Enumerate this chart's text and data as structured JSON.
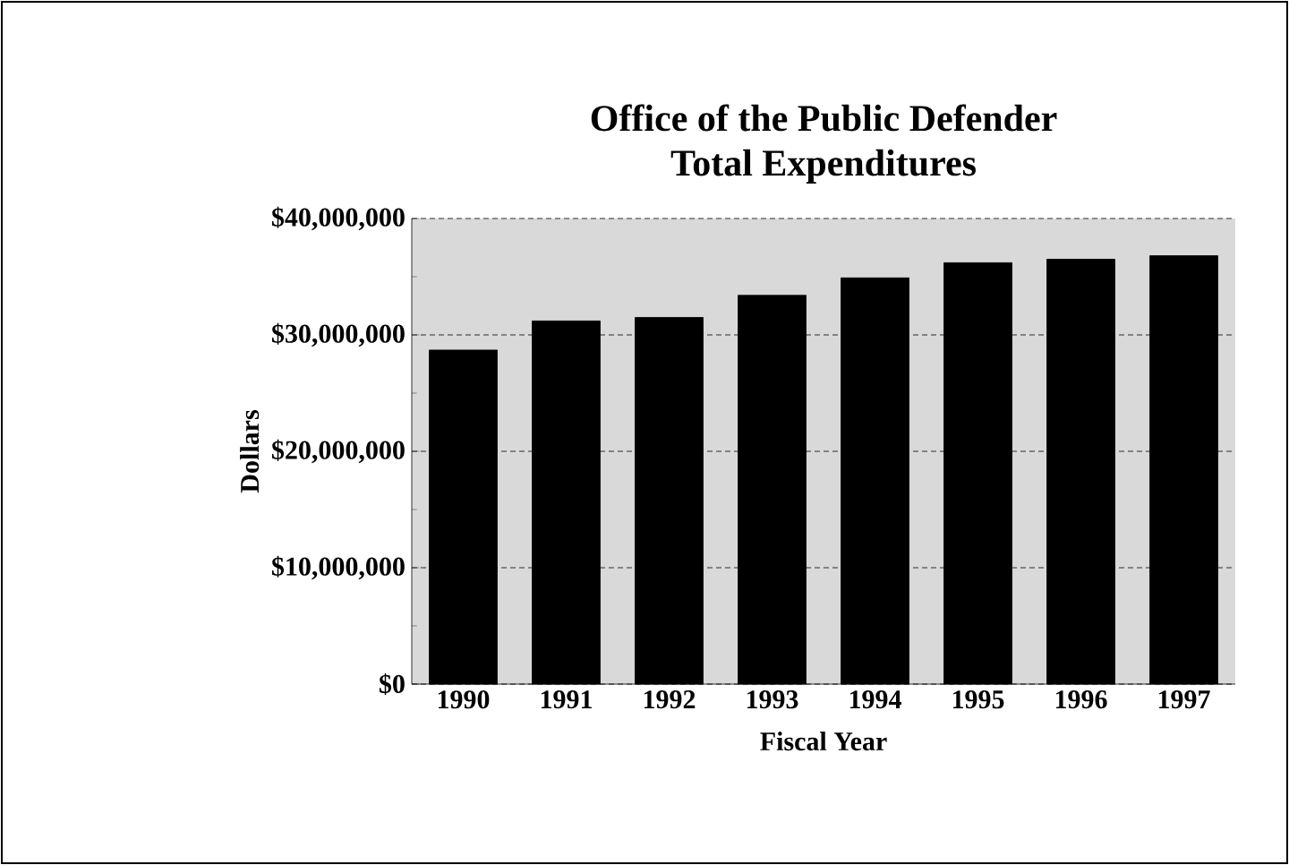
{
  "chart_data": {
    "type": "bar",
    "title": "Office of the Public Defender\nTotal Expenditures",
    "xlabel": "Fiscal Year",
    "ylabel": "Dollars",
    "categories": [
      "1990",
      "1991",
      "1992",
      "1993",
      "1994",
      "1995",
      "1996",
      "1997"
    ],
    "values": [
      28700000,
      31200000,
      31500000,
      33400000,
      34900000,
      36200000,
      36500000,
      36800000
    ],
    "color": "#000000",
    "ylim": [
      0,
      40000000
    ],
    "yticks": [
      {
        "value": 0,
        "label": "$0"
      },
      {
        "value": 10000000,
        "label": "$10,000,000"
      },
      {
        "value": 20000000,
        "label": "$20,000,000"
      },
      {
        "value": 30000000,
        "label": "$30,000,000"
      },
      {
        "value": 40000000,
        "label": "$40,000,000"
      }
    ],
    "grid": "y"
  }
}
